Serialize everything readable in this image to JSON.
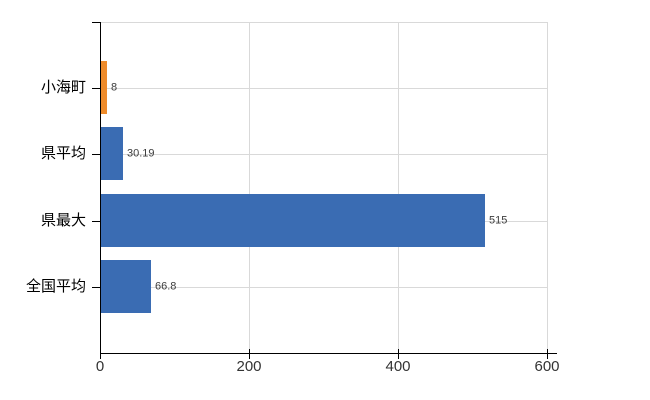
{
  "chart_data": {
    "type": "bar",
    "orientation": "horizontal",
    "title": "",
    "xlabel": "",
    "ylabel": "",
    "categories": [
      "小海町",
      "県平均",
      "県最大",
      "全国平均"
    ],
    "values": [
      8,
      30.19,
      515,
      66.8
    ],
    "value_labels": [
      "8",
      "30.19",
      "515",
      "66.8"
    ],
    "bar_colors": [
      "#ee8b2a",
      "#3a6cb3",
      "#3a6cb3",
      "#3a6cb3"
    ],
    "highlight_color": "#ee8b2a",
    "default_bar_color": "#3a6cb3",
    "x_ticks": [
      "0",
      "200",
      "400",
      "600"
    ],
    "x_tick_values": [
      0,
      200,
      400,
      600
    ],
    "xlim": [
      0,
      600
    ],
    "grid": true,
    "legend": "none",
    "gridline_color": "#d9d9d9",
    "axis_color": "#000000",
    "tick_label_color": "#333333",
    "value_label_color": "#3c3c3c",
    "background_color": "#ffffff"
  }
}
